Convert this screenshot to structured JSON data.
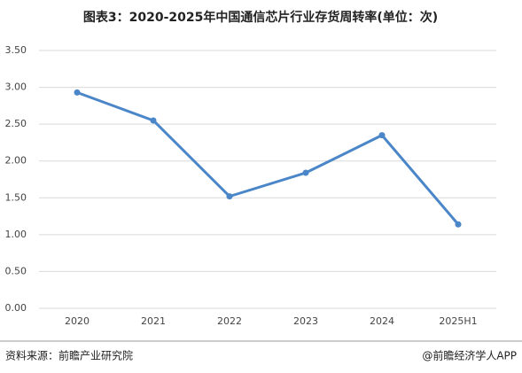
{
  "chart_data": {
    "type": "line",
    "title": "图表3：2020-2025年中国通信芯片行业存货周转率(单位：次)",
    "categories": [
      "2020",
      "2021",
      "2022",
      "2023",
      "2024",
      "2025H1"
    ],
    "series": [
      {
        "color": "#4a86c8",
        "values": [
          2.93,
          2.55,
          1.52,
          1.84,
          2.35,
          1.14
        ]
      }
    ],
    "ylim": [
      0,
      3.5
    ],
    "yticks": [
      {
        "value": 0,
        "label": "0.00"
      },
      {
        "value": 0.5,
        "label": "0.50"
      },
      {
        "value": 1,
        "label": "1.00"
      },
      {
        "value": 1.5,
        "label": "1.50"
      },
      {
        "value": 2,
        "label": "2.00"
      },
      {
        "value": 2.5,
        "label": "2.50"
      },
      {
        "value": 3,
        "label": "3.00"
      },
      {
        "value": 3.5,
        "label": "3.50"
      }
    ],
    "grid": true,
    "source": "资料来源：前瞻产业研究院",
    "credit": "@前瞻经济学人APP"
  }
}
